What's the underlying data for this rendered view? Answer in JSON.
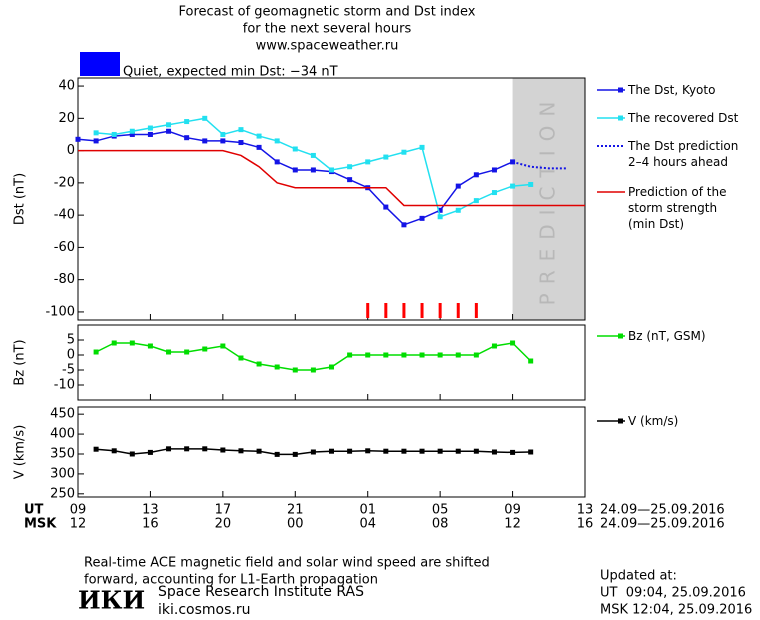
{
  "header": {
    "title": [
      "Forecast of geomagnetic storm and Dst index",
      "for the next several hours",
      "www.spaceweather.ru"
    ]
  },
  "status": {
    "color": "#0000ff",
    "text": "Quiet, expected min Dst: −34 nT"
  },
  "chart_data": [
    {
      "type": "line",
      "ylabel": "Dst (nT)",
      "xlim": [
        9,
        37
      ],
      "ylim": [
        -105,
        45
      ],
      "yticks": [
        40,
        20,
        0,
        -20,
        -40,
        -60,
        -80,
        -100
      ],
      "prediction_region": {
        "xlim": [
          33,
          37
        ],
        "label": "PREDICTION",
        "color": "#d3d3d3"
      },
      "storm_markers_x": [
        25,
        26,
        27,
        28,
        29,
        30,
        31
      ],
      "storm_marker_color": "#ff0000",
      "series": [
        {
          "name": "The Dst, Kyoto",
          "color": "#1414e6",
          "marker": "square",
          "style": "solid",
          "x": [
            9,
            10,
            11,
            12,
            13,
            14,
            15,
            16,
            17,
            18,
            19,
            20,
            21,
            22,
            23,
            24,
            25,
            26,
            27,
            28,
            29,
            30,
            31,
            32,
            33
          ],
          "values": [
            7,
            6,
            9,
            10,
            10,
            12,
            8,
            6,
            6,
            5,
            2,
            -7,
            -12,
            -12,
            -13,
            -18,
            -23,
            -35,
            -46,
            -42,
            -37,
            -22,
            -15,
            -12,
            -7
          ]
        },
        {
          "name": "The recovered Dst",
          "color": "#22e0f0",
          "marker": "square",
          "style": "solid",
          "x": [
            10,
            11,
            12,
            13,
            14,
            15,
            16,
            17,
            18,
            19,
            20,
            21,
            22,
            23,
            24,
            25,
            26,
            27,
            28,
            29,
            30,
            31,
            32,
            33,
            34
          ],
          "values": [
            11,
            10,
            12,
            14,
            16,
            18,
            20,
            10,
            13,
            9,
            6,
            1,
            -3,
            -12,
            -10,
            -7,
            -4,
            -1,
            2,
            -41,
            -37,
            -31,
            -26,
            -22,
            -21
          ]
        },
        {
          "name": "The Dst prediction\n2–4 hours ahead",
          "color": "#1414e6",
          "marker": "none",
          "style": "dotted",
          "x": [
            33,
            34,
            35,
            36
          ],
          "values": [
            -7,
            -10,
            -11,
            -11
          ]
        },
        {
          "name": "Prediction of the\nstorm strength\n(min Dst)",
          "color": "#e00000",
          "marker": "none",
          "style": "solid",
          "x": [
            9,
            17,
            18,
            19,
            20,
            21,
            26,
            27,
            37
          ],
          "values": [
            0,
            0,
            -3,
            -10,
            -20,
            -23,
            -23,
            -34,
            -34
          ]
        }
      ]
    },
    {
      "type": "line",
      "ylabel": "Bz (nT)",
      "xlim": [
        9,
        37
      ],
      "ylim": [
        -15,
        10
      ],
      "yticks": [
        5,
        0,
        -5,
        -10
      ],
      "series": [
        {
          "name": "Bz (nT, GSM)",
          "color": "#00dd00",
          "marker": "square",
          "style": "solid",
          "x": [
            10,
            11,
            12,
            13,
            14,
            15,
            16,
            17,
            18,
            19,
            20,
            21,
            22,
            23,
            24,
            25,
            26,
            27,
            28,
            29,
            30,
            31,
            32,
            33,
            34
          ],
          "values": [
            1,
            4,
            4,
            3,
            1,
            1,
            2,
            3,
            -1,
            -3,
            -4,
            -5,
            -5,
            -4,
            0,
            0,
            0,
            0,
            0,
            0,
            0,
            0,
            3,
            4,
            -2
          ]
        }
      ]
    },
    {
      "type": "line",
      "ylabel": "V (km/s)",
      "xlim": [
        9,
        37
      ],
      "ylim": [
        242,
        468
      ],
      "yticks": [
        450,
        400,
        350,
        300,
        250
      ],
      "xticks": [
        {
          "value": 9,
          "label": "09"
        },
        13,
        17,
        21,
        {
          "value": 25,
          "label": "01"
        },
        {
          "value": 29,
          "label": "05"
        },
        {
          "value": 33,
          "label": "09"
        },
        {
          "value": 37,
          "label": "13"
        }
      ],
      "x2ticks": [
        {
          "value": 9,
          "label": "12"
        },
        {
          "value": 13,
          "label": "16"
        },
        {
          "value": 17,
          "label": "20"
        },
        {
          "value": 21,
          "label": "00"
        },
        {
          "value": 25,
          "label": "04"
        },
        {
          "value": 29,
          "label": "08"
        },
        {
          "value": 33,
          "label": "12"
        },
        {
          "value": 37,
          "label": "16"
        }
      ],
      "x_row_labels": [
        "UT",
        "MSK"
      ],
      "date_range": "24.09—25.09.2016",
      "series": [
        {
          "name": "V (km/s)",
          "color": "#000000",
          "marker": "square",
          "style": "solid",
          "x": [
            10,
            11,
            12,
            13,
            14,
            15,
            16,
            17,
            18,
            19,
            20,
            21,
            22,
            23,
            24,
            25,
            26,
            27,
            28,
            29,
            30,
            31,
            32,
            33,
            34
          ],
          "values": [
            362,
            358,
            350,
            354,
            363,
            363,
            363,
            360,
            358,
            357,
            349,
            349,
            355,
            357,
            357,
            358,
            357,
            357,
            357,
            357,
            357,
            357,
            355,
            354,
            355
          ]
        }
      ]
    }
  ],
  "footer": {
    "note": [
      "Real-time ACE magnetic field and solar wind speed are shifted",
      "forward, accounting for L1-Earth propagation"
    ],
    "logo": "ИКИ",
    "institute": "Space Research Institute RAS",
    "site": "iki.cosmos.ru",
    "updated": [
      "Updated at:",
      "UT  09:04, 25.09.2016",
      "MSK 12:04, 25.09.2016"
    ]
  }
}
